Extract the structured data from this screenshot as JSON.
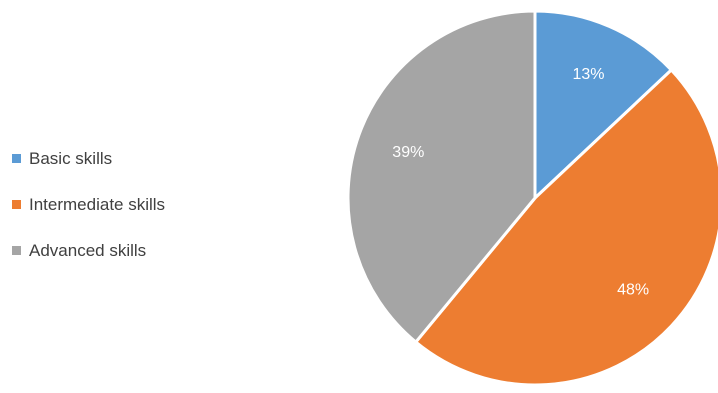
{
  "chart_data": {
    "type": "pie",
    "title": "",
    "categories": [
      "Basic skills",
      "Intermediate skills",
      "Advanced skills"
    ],
    "values": [
      13,
      48,
      39
    ],
    "labels": [
      "13%",
      "48%",
      "39%"
    ],
    "colors": [
      "#5b9bd5",
      "#ed7d31",
      "#a5a5a5"
    ],
    "legend_position": "left",
    "start_angle_deg": 0,
    "direction": "clockwise"
  }
}
